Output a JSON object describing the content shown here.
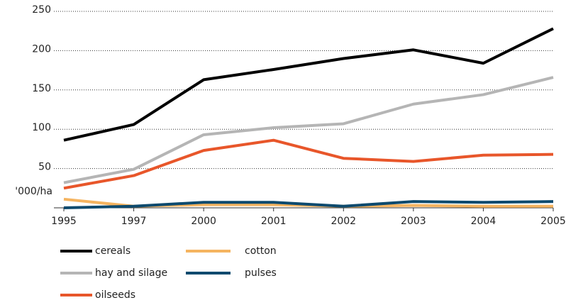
{
  "chart_data": {
    "type": "line",
    "y_label": "'000/ha",
    "categories": [
      "1995",
      "1997",
      "2000",
      "2001",
      "2002",
      "2003",
      "2004",
      "2005"
    ],
    "series": [
      {
        "name": "cereals",
        "color": "#000000",
        "values": [
          86,
          106,
          163,
          176,
          190,
          201,
          184,
          228
        ]
      },
      {
        "name": "hay and silage",
        "color": "#b5b5b5",
        "values": [
          32,
          49,
          93,
          102,
          107,
          132,
          144,
          166
        ]
      },
      {
        "name": "oilseeds",
        "color": "#e8562a",
        "values": [
          25,
          41,
          73,
          86,
          63,
          59,
          67,
          68
        ]
      },
      {
        "name": "cotton",
        "color": "#f5b460",
        "values": [
          11,
          2,
          4,
          4,
          2,
          3,
          2,
          2
        ]
      },
      {
        "name": "pulses",
        "color": "#0d4a6e",
        "values": [
          0,
          2,
          7,
          7,
          2,
          8,
          7,
          8
        ]
      }
    ],
    "ylim": [
      0,
      250
    ],
    "yticks": [
      50,
      100,
      150,
      200,
      250
    ],
    "grid": true
  }
}
